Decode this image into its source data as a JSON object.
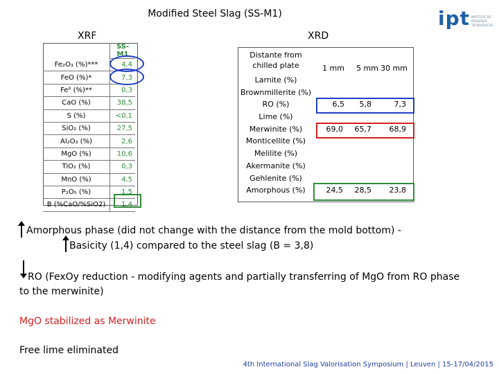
{
  "title": "Modified Steel Slag (SS-M1)",
  "logo": {
    "mark": "ipt",
    "lines": [
      "INSTITUTO DE",
      "PESQUISAS",
      "TECNOLÓGICAS"
    ]
  },
  "xrf": {
    "heading": "XRF",
    "column": "SS-M1",
    "rows": [
      {
        "label": "Fe₂O₃ (%)***",
        "value": "4,4"
      },
      {
        "label": "FeO (%)*",
        "value": "7,3"
      },
      {
        "label": "Fe⁰ (%)**",
        "value": "0,3"
      },
      {
        "label": "CaO (%)",
        "value": "38,5"
      },
      {
        "label": "S (%)",
        "value": "<0,1"
      },
      {
        "label": "SiO₂ (%)",
        "value": "27,5"
      },
      {
        "label": "Al₂O₃ (%)",
        "value": "2,6"
      },
      {
        "label": "MgO (%)",
        "value": "10,6"
      },
      {
        "label": "TiO₂ (%)",
        "value": "0,3"
      },
      {
        "label": "MnO (%)",
        "value": "4,5"
      },
      {
        "label": "P₂O₅ (%)",
        "value": "1,5"
      },
      {
        "label": "B (%CaO/%SiO2)",
        "value": "1,4"
      }
    ]
  },
  "xrd": {
    "heading": "XRD",
    "header_label": "Distante from chilled plate",
    "columns": [
      "1 mm",
      "5 mm",
      "30 mm"
    ],
    "rows": [
      {
        "label": "Larnite (%)",
        "values": [
          "",
          "",
          ""
        ]
      },
      {
        "label": "Brownmillerite (%)",
        "values": [
          "",
          "",
          ""
        ]
      },
      {
        "label": "RO (%)",
        "values": [
          "6,5",
          "5,8",
          "7,3"
        ]
      },
      {
        "label": "Lime (%)",
        "values": [
          "",
          "",
          ""
        ]
      },
      {
        "label": "Merwinite (%)",
        "values": [
          "69,0",
          "65,7",
          "68,9"
        ]
      },
      {
        "label": "Monticellite (%)",
        "values": [
          "",
          "",
          ""
        ]
      },
      {
        "label": "Melilite (%)",
        "values": [
          "",
          "",
          ""
        ]
      },
      {
        "label": "Akermanite (%)",
        "values": [
          "",
          "",
          ""
        ]
      },
      {
        "label": "Gehlenite (%)",
        "values": [
          "",
          "",
          ""
        ]
      },
      {
        "label": "Amorphous (%)",
        "values": [
          "24,5",
          "28,5",
          "23,8"
        ]
      }
    ]
  },
  "notes": {
    "amorphous": "Amorphous phase (did not change with the distance from the mold bottom) -",
    "basicity": "Basicity (1,4) compared to the steel slag (B = 3,8)",
    "ro_line1": "RO (FexOy reduction - modifying agents and partially transferring of MgO from RO phase",
    "ro_line2": "to the merwinite)",
    "mgo": "MgO stabilized as Merwinite",
    "lime": "Free lime eliminated"
  },
  "footer": "4th International Slag Valorisation Symposium | Leuven | 15-17/04/2015",
  "colors": {
    "green": "#2e8b3a",
    "blue": "#1f3fc8",
    "red": "#d42020",
    "footer": "#1f3fa0"
  }
}
